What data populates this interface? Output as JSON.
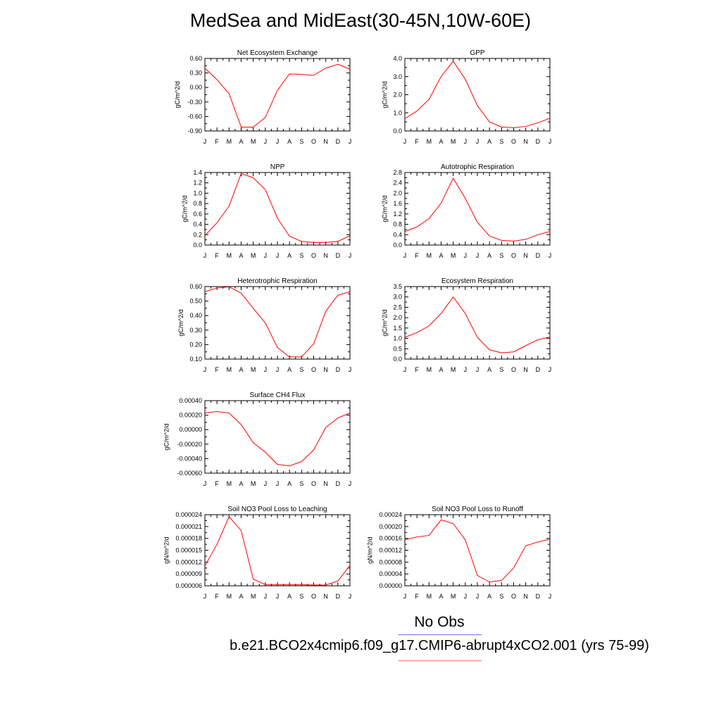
{
  "title": "MedSea and MidEast(30-45N,10W-60E)",
  "legend": {
    "obs_label": "No Obs",
    "obs_color": "#6b6bf0",
    "model_label": "b.e21.BCO2x4cmip6.f09_g17.CMIP6-abrupt4xCO2.001 (yrs 75-99)",
    "model_color": "#f07070"
  },
  "line_color": "#ff0000",
  "chart_data": [
    {
      "type": "line",
      "title": "Net Ecosystem Exchange",
      "ylabel": "gC/m^2/d",
      "xlabel": "",
      "categories": [
        "J",
        "F",
        "M",
        "A",
        "M",
        "J",
        "J",
        "A",
        "S",
        "O",
        "N",
        "D",
        "J"
      ],
      "ylim": [
        -0.9,
        0.6
      ],
      "yticks": [
        -0.9,
        -0.6,
        -0.3,
        0.0,
        0.3,
        0.6
      ],
      "ytick_labels": [
        "-0.90",
        "-0.60",
        "-0.30",
        "0.00",
        "0.30",
        "0.60"
      ],
      "series": [
        {
          "values": [
            0.4,
            0.16,
            -0.13,
            -0.82,
            -0.82,
            -0.62,
            -0.06,
            0.28,
            0.27,
            0.25,
            0.4,
            0.48,
            0.38
          ]
        }
      ]
    },
    {
      "type": "line",
      "title": "GPP",
      "ylabel": "gC/m^2/d",
      "xlabel": "",
      "categories": [
        "J",
        "F",
        "M",
        "A",
        "M",
        "J",
        "J",
        "A",
        "S",
        "O",
        "N",
        "D",
        "J"
      ],
      "ylim": [
        0,
        4
      ],
      "yticks": [
        0,
        1,
        2,
        3,
        4
      ],
      "ytick_labels": [
        "0.0",
        "1.0",
        "2.0",
        "3.0",
        "4.0"
      ],
      "series": [
        {
          "values": [
            0.68,
            1.1,
            1.75,
            3.0,
            3.85,
            2.85,
            1.4,
            0.5,
            0.22,
            0.18,
            0.25,
            0.45,
            0.7
          ]
        }
      ]
    },
    {
      "type": "line",
      "title": "NPP",
      "ylabel": "gC/m^2/d",
      "xlabel": "",
      "categories": [
        "J",
        "F",
        "M",
        "A",
        "M",
        "J",
        "J",
        "A",
        "S",
        "O",
        "N",
        "D",
        "J"
      ],
      "ylim": [
        0,
        1.4
      ],
      "yticks": [
        0,
        0.2,
        0.4,
        0.6,
        0.8,
        1.0,
        1.2,
        1.4
      ],
      "ytick_labels": [
        "0.0",
        "0.2",
        "0.4",
        "0.6",
        "0.8",
        "1.0",
        "1.2",
        "1.4"
      ],
      "series": [
        {
          "values": [
            0.18,
            0.43,
            0.75,
            1.38,
            1.3,
            1.07,
            0.52,
            0.17,
            0.07,
            0.05,
            0.05,
            0.07,
            0.18
          ]
        }
      ]
    },
    {
      "type": "line",
      "title": "Autotrophic Respiration",
      "ylabel": "gC/m^2/d",
      "xlabel": "",
      "categories": [
        "J",
        "F",
        "M",
        "A",
        "M",
        "J",
        "J",
        "A",
        "S",
        "O",
        "N",
        "D",
        "J"
      ],
      "ylim": [
        0,
        2.8
      ],
      "yticks": [
        0,
        0.4,
        0.8,
        1.2,
        1.6,
        2.0,
        2.4,
        2.8
      ],
      "ytick_labels": [
        "0.0",
        "0.4",
        "0.8",
        "1.2",
        "1.6",
        "2.0",
        "2.4",
        "2.8"
      ],
      "series": [
        {
          "values": [
            0.52,
            0.7,
            1.02,
            1.62,
            2.58,
            1.8,
            0.88,
            0.35,
            0.18,
            0.15,
            0.22,
            0.4,
            0.52
          ]
        }
      ]
    },
    {
      "type": "line",
      "title": "Heterotrophic Respiration",
      "ylabel": "gC/m^2/d",
      "xlabel": "",
      "categories": [
        "J",
        "F",
        "M",
        "A",
        "M",
        "J",
        "J",
        "A",
        "S",
        "O",
        "N",
        "D",
        "J"
      ],
      "ylim": [
        0.1,
        0.6
      ],
      "yticks": [
        0.1,
        0.2,
        0.3,
        0.4,
        0.5,
        0.6
      ],
      "ytick_labels": [
        "0.10",
        "0.20",
        "0.30",
        "0.40",
        "0.50",
        "0.60"
      ],
      "series": [
        {
          "values": [
            0.565,
            0.59,
            0.598,
            0.555,
            0.45,
            0.35,
            0.18,
            0.115,
            0.115,
            0.205,
            0.43,
            0.54,
            0.565
          ]
        }
      ]
    },
    {
      "type": "line",
      "title": "Ecosystem Respiration",
      "ylabel": "gC/m^2/d",
      "xlabel": "",
      "categories": [
        "J",
        "F",
        "M",
        "A",
        "M",
        "J",
        "J",
        "A",
        "S",
        "O",
        "N",
        "D",
        "J"
      ],
      "ylim": [
        0,
        3.5
      ],
      "yticks": [
        0,
        0.5,
        1.0,
        1.5,
        2.0,
        2.5,
        3.0,
        3.5
      ],
      "ytick_labels": [
        "0.0",
        "0.5",
        "1.0",
        "1.5",
        "2.0",
        "2.5",
        "3.0",
        "3.5"
      ],
      "series": [
        {
          "values": [
            1.05,
            1.28,
            1.6,
            2.2,
            3.0,
            2.2,
            1.05,
            0.45,
            0.3,
            0.35,
            0.65,
            0.93,
            1.07
          ]
        }
      ]
    },
    {
      "type": "line",
      "title": "Surface CH4 Flux",
      "ylabel": "gC/m^2/d",
      "xlabel": "",
      "categories": [
        "J",
        "F",
        "M",
        "A",
        "M",
        "J",
        "J",
        "A",
        "S",
        "O",
        "N",
        "D",
        "J"
      ],
      "ylim": [
        -0.0006,
        0.0004
      ],
      "yticks": [
        -0.0006,
        -0.0004,
        -0.0002,
        0.0,
        0.0002,
        0.0004
      ],
      "ytick_labels": [
        "-0.00060",
        "-0.00040",
        "-0.00020",
        "0.00000",
        "0.00020",
        "0.00040"
      ],
      "series": [
        {
          "values": [
            0.00023,
            0.00025,
            0.00023,
            7e-05,
            -0.00018,
            -0.00031,
            -0.00048,
            -0.0005,
            -0.00044,
            -0.00028,
            3e-05,
            0.00016,
            0.00023
          ]
        }
      ]
    },
    {
      "type": "line",
      "title": "Soil NO3 Pool Loss to Leaching",
      "ylabel": "gN/m^2/d",
      "xlabel": "",
      "categories": [
        "J",
        "F",
        "M",
        "A",
        "M",
        "J",
        "J",
        "A",
        "S",
        "O",
        "N",
        "D",
        "J"
      ],
      "ylim": [
        6e-06,
        2.4e-05
      ],
      "yticks": [
        6e-06,
        9e-06,
        1.2e-05,
        1.5e-05,
        1.8e-05,
        2.1e-05,
        2.4e-05
      ],
      "ytick_labels": [
        "0.000006",
        "0.000009",
        "0.000012",
        "0.000015",
        "0.000018",
        "0.000021",
        "0.000024"
      ],
      "series": [
        {
          "values": [
            1.1e-05,
            1.65e-05,
            2.35e-05,
            2e-05,
            7.7e-06,
            6.3e-06,
            6.3e-06,
            6.3e-06,
            6.3e-06,
            6.2e-06,
            6.2e-06,
            7.2e-06,
            1.12e-05
          ]
        }
      ]
    },
    {
      "type": "line",
      "title": "Soil NO3 Pool Loss to Runoff",
      "ylabel": "gN/m^2/d",
      "xlabel": "",
      "categories": [
        "J",
        "F",
        "M",
        "A",
        "M",
        "J",
        "J",
        "A",
        "S",
        "O",
        "N",
        "D",
        "J"
      ],
      "ylim": [
        0,
        0.00024
      ],
      "yticks": [
        0,
        4e-05,
        8e-05,
        0.00012,
        0.00016,
        0.0002,
        0.00024
      ],
      "ytick_labels": [
        "0.00000",
        "0.00004",
        "0.00008",
        "0.00012",
        "0.00016",
        "0.00020",
        "0.00024"
      ],
      "series": [
        {
          "values": [
            0.000155,
            0.000165,
            0.00017,
            0.000223,
            0.00021,
            0.000155,
            3.5e-05,
            1.3e-05,
            1.8e-05,
            6e-05,
            0.000135,
            0.000148,
            0.000157
          ]
        }
      ]
    }
  ]
}
